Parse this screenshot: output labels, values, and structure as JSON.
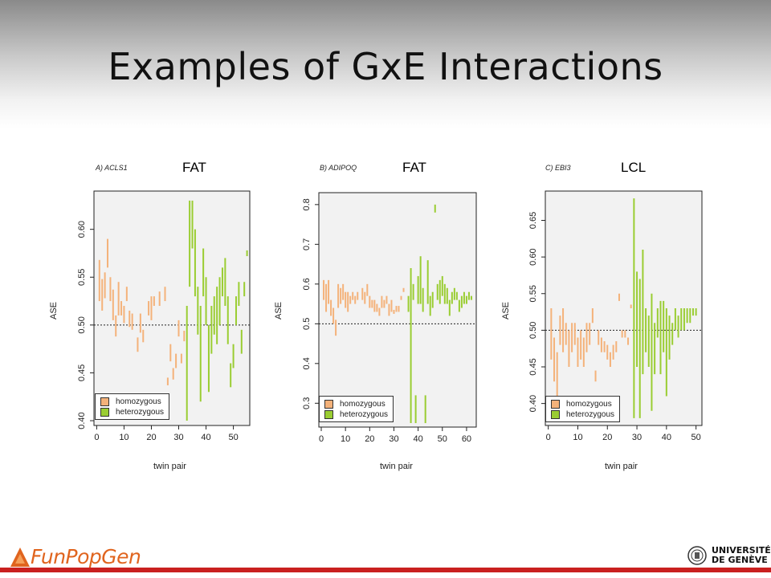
{
  "slide": {
    "title": "Examples of GxE Interactions"
  },
  "panels": [
    {
      "tag": "A) ACLS1",
      "category": "FAT"
    },
    {
      "tag": "B) ADIPOQ",
      "category": "FAT"
    },
    {
      "tag": "C) EBI3",
      "category": "LCL"
    }
  ],
  "legend": {
    "homozygous": "homozygous",
    "heterozygous": "heterozygous"
  },
  "colors": {
    "homozygous": "#f4b27a",
    "heterozygous": "#9acd32",
    "plot_bg": "#f2f2f2"
  },
  "footer": {
    "logo_left": "FunPopGen",
    "logo_right_line1": "UNIVERSITÉ",
    "logo_right_line2": "DE GENÈVE"
  },
  "chart_data": [
    {
      "type": "segments",
      "title": "A) ACLS1",
      "annotation": "FAT",
      "xlabel": "twin pair",
      "ylabel": "ASE",
      "xlim": [
        -1,
        56
      ],
      "ylim": [
        0.395,
        0.64
      ],
      "xticks": [
        0,
        10,
        20,
        30,
        40,
        50
      ],
      "yticks": [
        0.4,
        0.45,
        0.5,
        0.55,
        0.6
      ],
      "ytick_labels": [
        "0.40",
        "0.45",
        "0.50",
        "0.55",
        "0.60"
      ],
      "reference_line": 0.5,
      "legend_position": "bottom-left",
      "series": [
        {
          "name": "homozygous",
          "segments": [
            [
              1,
              0.525,
              0.568
            ],
            [
              2,
              0.515,
              0.548
            ],
            [
              3,
              0.528,
              0.555
            ],
            [
              4,
              0.56,
              0.59
            ],
            [
              5,
              0.525,
              0.55
            ],
            [
              6,
              0.505,
              0.537
            ],
            [
              7,
              0.488,
              0.51
            ],
            [
              8,
              0.51,
              0.545
            ],
            [
              9,
              0.51,
              0.525
            ],
            [
              10,
              0.502,
              0.52
            ],
            [
              11,
              0.525,
              0.54
            ],
            [
              12,
              0.498,
              0.515
            ],
            [
              13,
              0.495,
              0.512
            ],
            [
              15,
              0.472,
              0.487
            ],
            [
              16,
              0.492,
              0.512
            ],
            [
              17,
              0.482,
              0.495
            ],
            [
              19,
              0.51,
              0.525
            ],
            [
              20,
              0.505,
              0.53
            ],
            [
              21,
              0.52,
              0.53
            ],
            [
              23,
              0.52,
              0.535
            ],
            [
              25,
              0.525,
              0.54
            ],
            [
              26,
              0.437,
              0.445
            ],
            [
              27,
              0.462,
              0.48
            ],
            [
              28,
              0.443,
              0.455
            ],
            [
              29,
              0.455,
              0.47
            ],
            [
              30,
              0.488,
              0.505
            ],
            [
              31,
              0.46,
              0.47
            ],
            [
              32,
              0.483,
              0.494
            ]
          ]
        },
        {
          "name": "heterozygous",
          "segments": [
            [
              33,
              0.4,
              0.52
            ],
            [
              34,
              0.54,
              0.63
            ],
            [
              35,
              0.58,
              0.63
            ],
            [
              36,
              0.53,
              0.6
            ],
            [
              37,
              0.49,
              0.54
            ],
            [
              38,
              0.42,
              0.52
            ],
            [
              39,
              0.53,
              0.58
            ],
            [
              40,
              0.5,
              0.55
            ],
            [
              41,
              0.43,
              0.5
            ],
            [
              42,
              0.47,
              0.52
            ],
            [
              43,
              0.49,
              0.53
            ],
            [
              44,
              0.48,
              0.54
            ],
            [
              45,
              0.5,
              0.55
            ],
            [
              46,
              0.53,
              0.56
            ],
            [
              47,
              0.52,
              0.57
            ],
            [
              48,
              0.48,
              0.53
            ],
            [
              49,
              0.435,
              0.46
            ],
            [
              50,
              0.455,
              0.48
            ],
            [
              51,
              0.5,
              0.53
            ],
            [
              52,
              0.52,
              0.545
            ],
            [
              53,
              0.47,
              0.495
            ],
            [
              54,
              0.53,
              0.545
            ],
            [
              55,
              0.572,
              0.578
            ]
          ]
        }
      ]
    },
    {
      "type": "segments",
      "title": "B) ADIPOQ",
      "annotation": "FAT",
      "xlabel": "twin pair",
      "ylabel": "ASE",
      "xlim": [
        -1,
        64
      ],
      "ylim": [
        0.24,
        0.83
      ],
      "xticks": [
        0,
        10,
        20,
        30,
        40,
        50,
        60
      ],
      "yticks": [
        0.3,
        0.4,
        0.5,
        0.6,
        0.7,
        0.8
      ],
      "ytick_labels": [
        "0.3",
        "0.4",
        "0.5",
        "0.6",
        "0.7",
        "0.8"
      ],
      "reference_line": 0.5,
      "legend_position": "bottom-left",
      "series": [
        {
          "name": "homozygous",
          "segments": [
            [
              1,
              0.56,
              0.61
            ],
            [
              2,
              0.53,
              0.6
            ],
            [
              3,
              0.55,
              0.61
            ],
            [
              4,
              0.52,
              0.56
            ],
            [
              5,
              0.5,
              0.54
            ],
            [
              6,
              0.47,
              0.51
            ],
            [
              7,
              0.54,
              0.6
            ],
            [
              8,
              0.55,
              0.59
            ],
            [
              9,
              0.56,
              0.6
            ],
            [
              10,
              0.54,
              0.58
            ],
            [
              11,
              0.53,
              0.58
            ],
            [
              12,
              0.55,
              0.57
            ],
            [
              13,
              0.56,
              0.58
            ],
            [
              14,
              0.55,
              0.57
            ],
            [
              15,
              0.56,
              0.58
            ],
            [
              17,
              0.56,
              0.59
            ],
            [
              18,
              0.55,
              0.58
            ],
            [
              19,
              0.57,
              0.6
            ],
            [
              20,
              0.54,
              0.57
            ],
            [
              21,
              0.54,
              0.56
            ],
            [
              22,
              0.53,
              0.56
            ],
            [
              23,
              0.53,
              0.55
            ],
            [
              24,
              0.52,
              0.54
            ],
            [
              25,
              0.54,
              0.57
            ],
            [
              26,
              0.54,
              0.56
            ],
            [
              27,
              0.55,
              0.57
            ],
            [
              28,
              0.52,
              0.55
            ],
            [
              29,
              0.53,
              0.56
            ],
            [
              30,
              0.525,
              0.535
            ],
            [
              31,
              0.53,
              0.545
            ],
            [
              32,
              0.53,
              0.545
            ],
            [
              33,
              0.56,
              0.57
            ],
            [
              34,
              0.58,
              0.59
            ]
          ]
        },
        {
          "name": "heterozygous",
          "segments": [
            [
              36,
              0.53,
              0.57
            ],
            [
              37,
              0.25,
              0.64
            ],
            [
              38,
              0.56,
              0.6
            ],
            [
              39,
              0.25,
              0.32
            ],
            [
              40,
              0.55,
              0.62
            ],
            [
              41,
              0.55,
              0.67
            ],
            [
              42,
              0.53,
              0.59
            ],
            [
              43,
              0.25,
              0.32
            ],
            [
              44,
              0.55,
              0.66
            ],
            [
              45,
              0.52,
              0.57
            ],
            [
              46,
              0.54,
              0.58
            ],
            [
              47,
              0.78,
              0.8
            ],
            [
              48,
              0.56,
              0.6
            ],
            [
              49,
              0.55,
              0.61
            ],
            [
              50,
              0.57,
              0.62
            ],
            [
              51,
              0.55,
              0.6
            ],
            [
              52,
              0.55,
              0.59
            ],
            [
              53,
              0.52,
              0.56
            ],
            [
              54,
              0.55,
              0.58
            ],
            [
              55,
              0.56,
              0.59
            ],
            [
              56,
              0.56,
              0.58
            ],
            [
              57,
              0.53,
              0.56
            ],
            [
              58,
              0.54,
              0.57
            ],
            [
              59,
              0.55,
              0.58
            ],
            [
              60,
              0.55,
              0.57
            ],
            [
              61,
              0.56,
              0.58
            ],
            [
              62,
              0.56,
              0.57
            ]
          ]
        }
      ]
    },
    {
      "type": "segments",
      "title": "C) EBI3",
      "annotation": "LCL",
      "xlabel": "twin pair",
      "ylabel": "ASE",
      "xlim": [
        -1,
        52
      ],
      "ylim": [
        0.37,
        0.69
      ],
      "xticks": [
        0,
        10,
        20,
        30,
        40,
        50
      ],
      "yticks": [
        0.4,
        0.45,
        0.5,
        0.55,
        0.6,
        0.65
      ],
      "ytick_labels": [
        "0.40",
        "0.45",
        "0.50",
        "0.55",
        "0.60",
        "0.65"
      ],
      "reference_line": 0.5,
      "legend_position": "bottom-left",
      "series": [
        {
          "name": "homozygous",
          "segments": [
            [
              1,
              0.46,
              0.53
            ],
            [
              2,
              0.43,
              0.49
            ],
            [
              3,
              0.4,
              0.47
            ],
            [
              4,
              0.48,
              0.52
            ],
            [
              5,
              0.47,
              0.53
            ],
            [
              6,
              0.48,
              0.51
            ],
            [
              7,
              0.45,
              0.5
            ],
            [
              8,
              0.47,
              0.51
            ],
            [
              9,
              0.48,
              0.51
            ],
            [
              10,
              0.45,
              0.49
            ],
            [
              11,
              0.46,
              0.5
            ],
            [
              12,
              0.45,
              0.49
            ],
            [
              13,
              0.47,
              0.51
            ],
            [
              14,
              0.48,
              0.51
            ],
            [
              15,
              0.51,
              0.53
            ],
            [
              16,
              0.43,
              0.445
            ],
            [
              17,
              0.48,
              0.5
            ],
            [
              18,
              0.47,
              0.49
            ],
            [
              19,
              0.47,
              0.485
            ],
            [
              20,
              0.46,
              0.48
            ],
            [
              21,
              0.45,
              0.47
            ],
            [
              22,
              0.46,
              0.48
            ],
            [
              23,
              0.47,
              0.485
            ],
            [
              24,
              0.54,
              0.55
            ],
            [
              25,
              0.49,
              0.5
            ],
            [
              26,
              0.49,
              0.5
            ],
            [
              27,
              0.48,
              0.49
            ],
            [
              28,
              0.53,
              0.535
            ]
          ]
        },
        {
          "name": "heterozygous",
          "segments": [
            [
              29,
              0.38,
              0.68
            ],
            [
              30,
              0.45,
              0.58
            ],
            [
              31,
              0.38,
              0.57
            ],
            [
              32,
              0.44,
              0.61
            ],
            [
              33,
              0.47,
              0.53
            ],
            [
              34,
              0.45,
              0.52
            ],
            [
              35,
              0.39,
              0.55
            ],
            [
              36,
              0.44,
              0.51
            ],
            [
              37,
              0.49,
              0.53
            ],
            [
              38,
              0.44,
              0.54
            ],
            [
              39,
              0.47,
              0.54
            ],
            [
              40,
              0.41,
              0.53
            ],
            [
              41,
              0.46,
              0.52
            ],
            [
              42,
              0.48,
              0.51
            ],
            [
              43,
              0.5,
              0.53
            ],
            [
              44,
              0.49,
              0.52
            ],
            [
              45,
              0.5,
              0.53
            ],
            [
              46,
              0.5,
              0.53
            ],
            [
              47,
              0.51,
              0.53
            ],
            [
              48,
              0.51,
              0.53
            ],
            [
              49,
              0.52,
              0.53
            ],
            [
              50,
              0.52,
              0.53
            ]
          ]
        }
      ]
    }
  ]
}
